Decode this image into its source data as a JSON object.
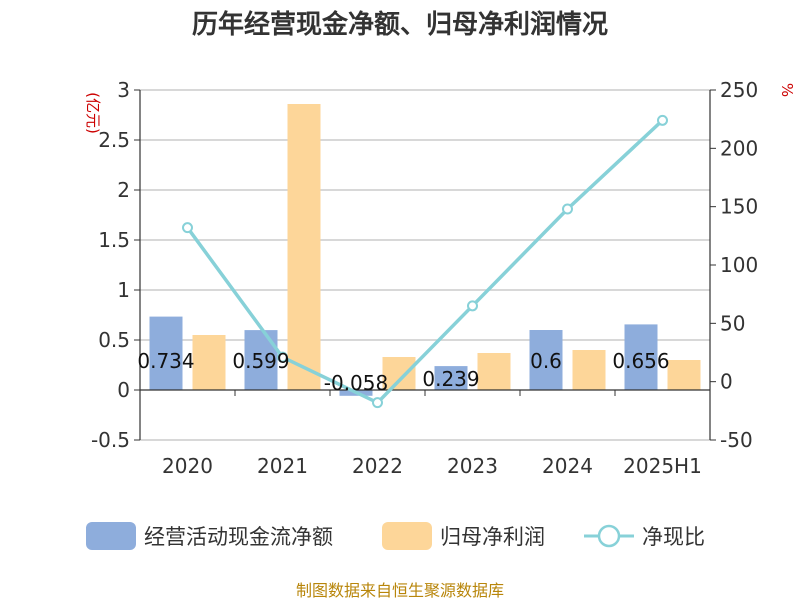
{
  "chart_data": {
    "type": "bar",
    "title": "历年经营现金净额、归母净利润情况",
    "categories": [
      "2020",
      "2021",
      "2022",
      "2023",
      "2024",
      "2025H1"
    ],
    "left_axis": {
      "unit": "(亿元)",
      "ylim": [
        -0.5,
        3
      ],
      "ticks": [
        "3",
        "2.5",
        "2",
        "1.5",
        "1",
        "0.5",
        "0",
        "-0.5"
      ]
    },
    "right_axis": {
      "unit": "%",
      "ylim": [
        -50,
        250
      ],
      "ticks": [
        "250",
        "200",
        "150",
        "100",
        "50",
        "0",
        "-50"
      ]
    },
    "series": [
      {
        "name": "经营活动现金流净额",
        "kind": "bar",
        "axis": "left",
        "color": "#8eaddc",
        "values": [
          0.734,
          0.599,
          -0.058,
          0.239,
          0.6,
          0.656
        ],
        "labels": [
          "0.734",
          "0.599",
          "-0.058",
          "0.239",
          "0.6",
          "0.656"
        ]
      },
      {
        "name": "归母净利润",
        "kind": "bar",
        "axis": "left",
        "color": "#fdd699",
        "values": [
          0.55,
          2.86,
          0.33,
          0.37,
          0.4,
          0.3
        ]
      },
      {
        "name": "净现比",
        "kind": "line",
        "axis": "right",
        "color": "#87d1d8",
        "values": [
          132,
          21,
          -18,
          65,
          148,
          224
        ]
      }
    ],
    "grid": true,
    "legend_position": "bottom"
  },
  "footer": {
    "source": "制图数据来自恒生聚源数据库"
  }
}
